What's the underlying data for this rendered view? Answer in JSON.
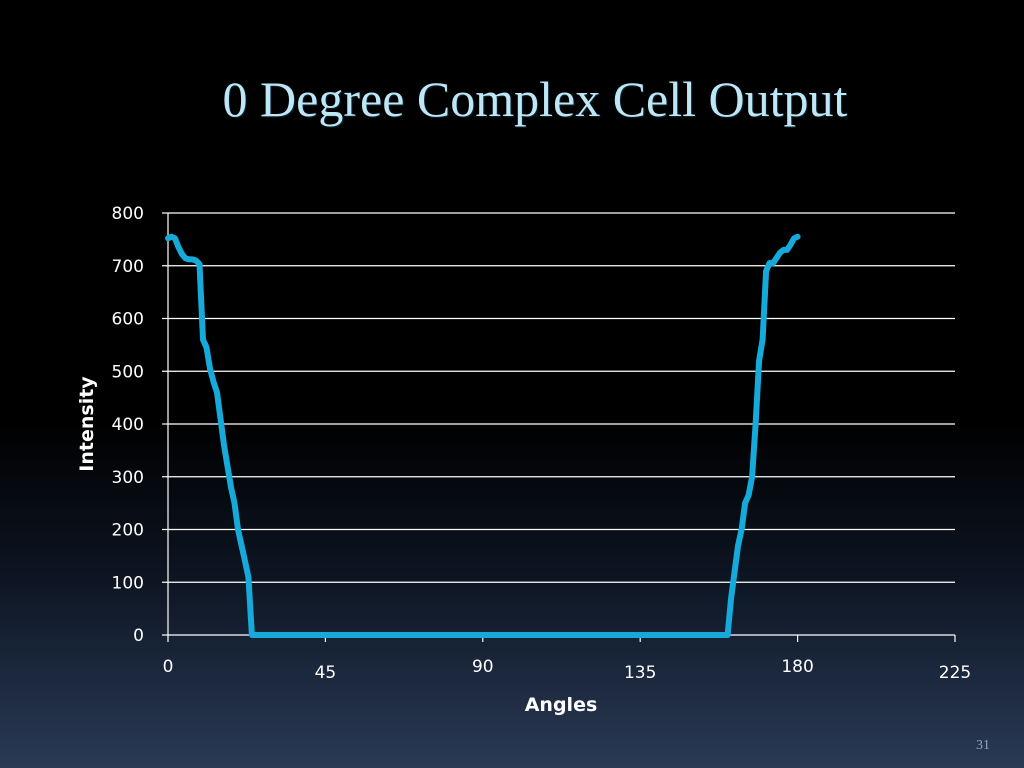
{
  "slide": {
    "title": "0 Degree Complex Cell Output",
    "number": "31"
  },
  "colors": {
    "series": "#16aadb",
    "grid": "#ffffff",
    "title": "#bfe6f5"
  },
  "chart_data": {
    "type": "line",
    "title": "",
    "xlabel": "Angles",
    "ylabel": "Intensity",
    "xlim": [
      0,
      225
    ],
    "ylim": [
      0,
      800
    ],
    "xticks": [
      0,
      45,
      90,
      135,
      180,
      225
    ],
    "yticks": [
      0,
      100,
      200,
      300,
      400,
      500,
      600,
      700,
      800
    ],
    "grid": true,
    "legend": "none",
    "series": [
      {
        "x": [
          0,
          1,
          2,
          3,
          4,
          5,
          6,
          7,
          8,
          9,
          10,
          11,
          12,
          13,
          14,
          15,
          16,
          17,
          18,
          19,
          20,
          21,
          22,
          23,
          24,
          25,
          26,
          30,
          45,
          60,
          90,
          120,
          135,
          150,
          158,
          159,
          160,
          161,
          162,
          163,
          164,
          165,
          166,
          167,
          168,
          169,
          170,
          171,
          172,
          173,
          174,
          175,
          176,
          177,
          178,
          179,
          180
        ],
        "y": [
          752,
          755,
          752,
          735,
          722,
          714,
          712,
          712,
          710,
          703,
          560,
          545,
          505,
          480,
          460,
          410,
          360,
          320,
          280,
          250,
          200,
          170,
          140,
          110,
          0,
          0,
          0,
          0,
          0,
          0,
          0,
          0,
          0,
          0,
          0,
          0,
          0,
          70,
          120,
          170,
          200,
          250,
          265,
          300,
          400,
          520,
          560,
          690,
          705,
          705,
          715,
          725,
          730,
          730,
          740,
          752,
          755
        ]
      }
    ]
  }
}
